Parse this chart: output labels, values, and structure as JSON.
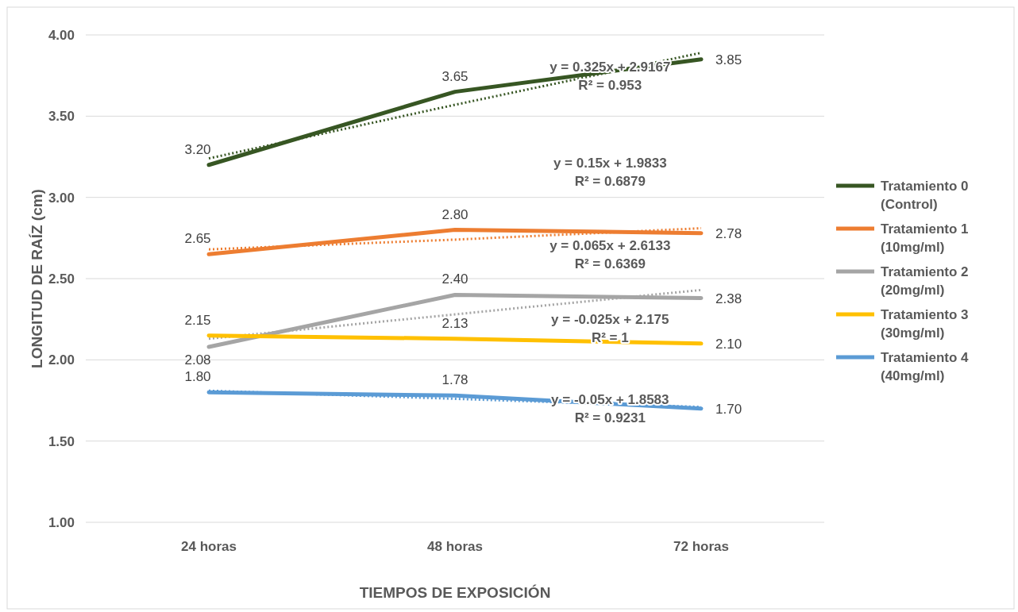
{
  "chart_data": {
    "type": "line",
    "xlabel": "TIEMPOS DE EXPOSICIÓN",
    "ylabel": "LONGITUD DE RAÍZ (cm)",
    "categories": [
      "24 horas",
      "48 horas",
      "72 horas"
    ],
    "ylim": [
      1,
      4
    ],
    "yticks": [
      {
        "value": 1,
        "label": "1.00"
      },
      {
        "value": 1.5,
        "label": "1.50"
      },
      {
        "value": 2,
        "label": "2.00"
      },
      {
        "value": 2.5,
        "label": "2.50"
      },
      {
        "value": 3,
        "label": "3.00"
      },
      {
        "value": 3.5,
        "label": "3.50"
      },
      {
        "value": 4,
        "label": "4.00"
      }
    ],
    "grid": "y",
    "legend": "right",
    "line_style": "solid",
    "marker": "none",
    "series": [
      {
        "name": "Tratamiento 0 (Control)",
        "color": "#375623",
        "values": [
          3.2,
          3.65,
          3.85
        ],
        "value_labels": [
          "3.20",
          "3.65",
          "3.85"
        ]
      },
      {
        "name": "Tratamiento 1 (10mg/ml)",
        "color": "#ed7d31",
        "values": [
          2.65,
          2.8,
          2.78
        ],
        "value_labels": [
          "2.65",
          "2.80",
          "2.78"
        ]
      },
      {
        "name": "Tratamiento 2 (20mg/ml)",
        "color": "#a5a5a5",
        "values": [
          2.08,
          2.4,
          2.38
        ],
        "value_labels": [
          "2.08",
          "2.40",
          "2.38"
        ]
      },
      {
        "name": "Tratamiento 3 (30mg/ml)",
        "color": "#ffc000",
        "values": [
          2.15,
          2.13,
          2.1
        ],
        "value_labels": [
          "2.15",
          "2.13",
          "2.10"
        ]
      },
      {
        "name": "Tratamiento 4 (40mg/ml)",
        "color": "#5b9bd5",
        "values": [
          1.8,
          1.78,
          1.7
        ],
        "value_labels": [
          "1.80",
          "1.78",
          "1.70"
        ]
      },
      {
        "type": "line",
        "line_style": "dotted",
        "color": "#375623",
        "values": [
          3.24,
          3.57,
          3.89
        ]
      },
      {
        "type": "line",
        "line_style": "dotted",
        "color": "#ed7d31",
        "values": [
          2.68,
          2.74,
          2.81
        ]
      },
      {
        "type": "line",
        "line_style": "dotted",
        "color": "#a5a5a5",
        "values": [
          2.13,
          2.28,
          2.43
        ]
      },
      {
        "type": "line",
        "line_style": "dotted",
        "color": "#5b9bd5",
        "values": [
          1.81,
          1.76,
          1.71
        ]
      }
    ],
    "annotations": [
      "y = 0.325x + 2.9167\nR² = 0.953",
      "y = 0.15x + 1.9833\nR² = 0.6879",
      "y = 0.065x + 2.6133\nR² = 0.6369",
      "y = -0.025x + 2.175\nR² = 1",
      "y = -0.05x + 1.8583\nR² = 0.9231"
    ]
  }
}
